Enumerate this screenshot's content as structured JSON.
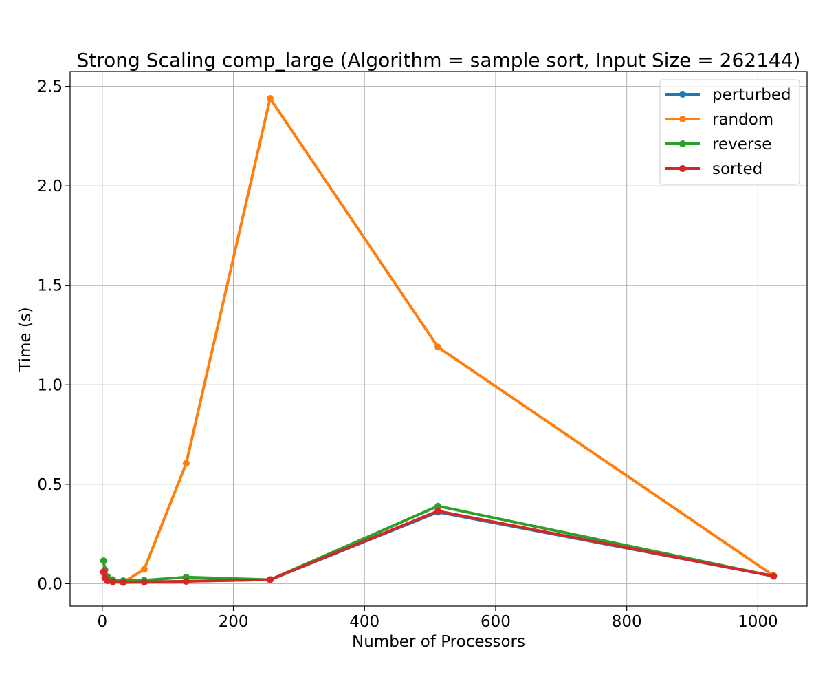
{
  "chart_data": {
    "type": "line",
    "title": "Strong Scaling comp_large (Algorithm = sample sort, Input Size = 262144)",
    "xlabel": "Number of Processors",
    "ylabel": "Time (s)",
    "xlim": [
      -49.1,
      1075.1
    ],
    "ylim": [
      -0.113,
      2.575
    ],
    "xticks": [
      0,
      200,
      400,
      600,
      800,
      1000
    ],
    "xtick_labels": [
      "0",
      "200",
      "400",
      "600",
      "800",
      "1000"
    ],
    "yticks": [
      0.0,
      0.5,
      1.0,
      1.5,
      2.0,
      2.5
    ],
    "ytick_labels": [
      "0.0",
      "0.5",
      "1.0",
      "1.5",
      "2.0",
      "2.5"
    ],
    "grid": true,
    "legend_position": "top-right",
    "x": [
      2,
      4,
      8,
      16,
      32,
      64,
      128,
      256,
      512,
      1024
    ],
    "series": [
      {
        "name": "perturbed",
        "color": "#1f77b4",
        "values": [
          0.055,
          0.03,
          0.015,
          0.01,
          0.007,
          0.008,
          0.012,
          0.02,
          0.36,
          0.038
        ]
      },
      {
        "name": "random",
        "color": "#ff7f0e",
        "values": [
          0.055,
          0.03,
          0.015,
          0.01,
          0.007,
          0.072,
          0.605,
          2.44,
          1.19,
          0.04
        ]
      },
      {
        "name": "reverse",
        "color": "#2ca02c",
        "values": [
          0.115,
          0.07,
          0.035,
          0.02,
          0.015,
          0.017,
          0.033,
          0.02,
          0.39,
          0.038
        ]
      },
      {
        "name": "sorted",
        "color": "#d62728",
        "values": [
          0.06,
          0.03,
          0.015,
          0.01,
          0.007,
          0.008,
          0.012,
          0.02,
          0.365,
          0.038
        ]
      }
    ]
  }
}
